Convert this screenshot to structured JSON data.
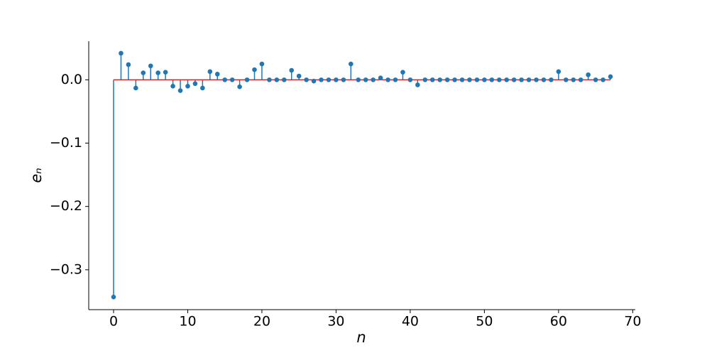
{
  "chart_data": {
    "type": "stem",
    "xlabel": "n",
    "ylabel": "eₙ",
    "color": "#1f77b4",
    "baseline_color": "#d62728",
    "x": [
      0,
      1,
      2,
      3,
      4,
      5,
      6,
      7,
      8,
      9,
      10,
      11,
      12,
      13,
      14,
      15,
      16,
      17,
      18,
      19,
      20,
      21,
      22,
      23,
      24,
      25,
      26,
      27,
      28,
      29,
      30,
      31,
      32,
      33,
      34,
      35,
      36,
      37,
      38,
      39,
      40,
      41,
      42,
      43,
      44,
      45,
      46,
      47,
      48,
      49,
      50,
      51,
      52,
      53,
      54,
      55,
      56,
      57,
      58,
      59,
      60,
      61,
      62,
      63,
      64,
      65,
      66,
      67
    ],
    "values": [
      -0.343,
      0.042,
      0.024,
      -0.013,
      0.011,
      0.022,
      0.011,
      0.012,
      -0.01,
      -0.017,
      -0.01,
      -0.006,
      -0.013,
      0.013,
      0.009,
      0,
      0,
      -0.011,
      0,
      0.016,
      0.025,
      0,
      0,
      0,
      0.015,
      0.006,
      0,
      -0.002,
      0,
      0,
      0,
      0,
      0.025,
      0,
      0,
      0,
      0.003,
      0,
      0,
      0.012,
      0,
      -0.008,
      0,
      0,
      0,
      0,
      0,
      0,
      0,
      0,
      0,
      0,
      0,
      0,
      0,
      0,
      0,
      0,
      0,
      0,
      0.013,
      0,
      0,
      0,
      0.008,
      0,
      0,
      0.005
    ],
    "xlim": [
      -3.35,
      70.35
    ],
    "ylim": [
      -0.363,
      0.061
    ],
    "xticks": [
      0,
      10,
      20,
      30,
      40,
      50,
      60,
      70
    ],
    "yticks": [
      {
        "value": 0.0,
        "label": "0.0"
      },
      {
        "value": -0.1,
        "label": "−0.1"
      },
      {
        "value": -0.2,
        "label": "−0.2"
      },
      {
        "value": -0.3,
        "label": "−0.3"
      }
    ]
  }
}
